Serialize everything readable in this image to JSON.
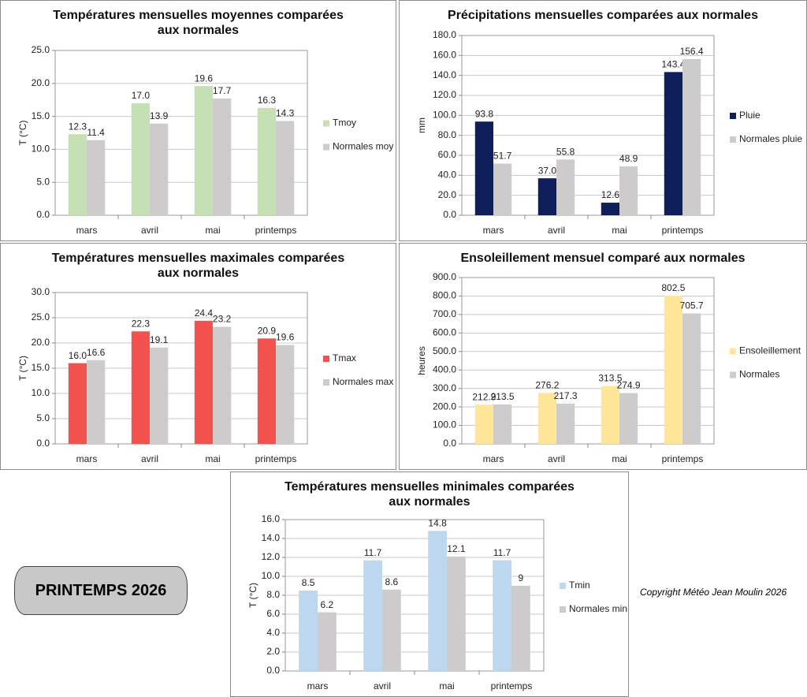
{
  "chart_data": [
    {
      "type": "bar",
      "title": "Températures mensuelles moyennes comparées\naux normales",
      "y_label": "T (°C)",
      "categories": [
        "mars",
        "avril",
        "mai",
        "printemps"
      ],
      "series": [
        {
          "name": "Tmoy",
          "color": "#c5e0b3",
          "values": [
            12.3,
            17.0,
            19.6,
            16.3
          ],
          "value_labels": [
            "12.3",
            "17.0",
            "19.6",
            "16.3"
          ]
        },
        {
          "name": "Normales moy",
          "color": "#cdcbcc",
          "values": [
            11.4,
            13.9,
            17.7,
            14.3
          ]
        }
      ],
      "ylim": [
        0,
        25
      ],
      "yticks": [
        {
          "value": 0,
          "label": "0.0"
        },
        {
          "value": 5,
          "label": "5.0"
        },
        {
          "value": 10,
          "label": "10.0"
        },
        {
          "value": 15,
          "label": "15.0"
        },
        {
          "value": 20,
          "label": "20.0"
        },
        {
          "value": 25,
          "label": "25.0"
        }
      ],
      "grid": true
    },
    {
      "type": "bar",
      "title": "Précipitations mensuelles comparées aux normales",
      "y_label": "mm",
      "categories": [
        "mars",
        "avril",
        "mai",
        "printemps"
      ],
      "series": [
        {
          "name": "Pluie",
          "color": "#0f1f5c",
          "values": [
            93.8,
            37.0,
            12.6,
            143.4
          ],
          "value_labels": [
            "93.8",
            "37.0",
            "12.6",
            "143.4"
          ]
        },
        {
          "name": "Normales pluie",
          "color": "#cdcbcc",
          "values": [
            51.7,
            55.8,
            48.9,
            156.4
          ]
        }
      ],
      "ylim": [
        0,
        180
      ],
      "yticks": [
        {
          "value": 0,
          "label": "0.0"
        },
        {
          "value": 20,
          "label": "20.0"
        },
        {
          "value": 40,
          "label": "40.0"
        },
        {
          "value": 60,
          "label": "60.0"
        },
        {
          "value": 80,
          "label": "80.0"
        },
        {
          "value": 100,
          "label": "100.0"
        },
        {
          "value": 120,
          "label": "120.0"
        },
        {
          "value": 140,
          "label": "140.0"
        },
        {
          "value": 160,
          "label": "160.0"
        },
        {
          "value": 180,
          "label": "180.0"
        }
      ],
      "grid": true
    },
    {
      "type": "bar",
      "title": "Températures mensuelles maximales comparées\naux normales",
      "y_label": "T (°C)",
      "categories": [
        "mars",
        "avril",
        "mai",
        "printemps"
      ],
      "series": [
        {
          "name": "Tmax",
          "color": "#f4524f",
          "values": [
            16.0,
            22.3,
            24.4,
            20.9
          ],
          "value_labels": [
            "16.0",
            "22.3",
            "24.4",
            "20.9"
          ]
        },
        {
          "name": "Normales max",
          "color": "#cdcbcc",
          "values": [
            16.6,
            19.1,
            23.2,
            19.6
          ]
        }
      ],
      "ylim": [
        0,
        30
      ],
      "yticks": [
        {
          "value": 0,
          "label": "0.0"
        },
        {
          "value": 5,
          "label": "5.0"
        },
        {
          "value": 10,
          "label": "10.0"
        },
        {
          "value": 15,
          "label": "15.0"
        },
        {
          "value": 20,
          "label": "20.0"
        },
        {
          "value": 25,
          "label": "25.0"
        },
        {
          "value": 30,
          "label": "30.0"
        }
      ],
      "grid": true
    },
    {
      "type": "bar",
      "title": "Ensoleillement mensuel comparé aux normales",
      "y_label": "heures",
      "categories": [
        "mars",
        "avril",
        "mai",
        "printemps"
      ],
      "series": [
        {
          "name": "Ensoleillement",
          "color": "#ffe699",
          "values": [
            212.9,
            276.2,
            313.5,
            802.5
          ]
        },
        {
          "name": "Normales",
          "color": "#cdcbcc",
          "values": [
            213.5,
            217.3,
            274.9,
            705.7
          ]
        }
      ],
      "ylim": [
        0,
        900
      ],
      "yticks": [
        {
          "value": 0,
          "label": "0.0"
        },
        {
          "value": 100,
          "label": "100.0"
        },
        {
          "value": 200,
          "label": "200.0"
        },
        {
          "value": 300,
          "label": "300.0"
        },
        {
          "value": 400,
          "label": "400.0"
        },
        {
          "value": 500,
          "label": "500.0"
        },
        {
          "value": 600,
          "label": "600.0"
        },
        {
          "value": 700,
          "label": "700.0"
        },
        {
          "value": 800,
          "label": "800.0"
        },
        {
          "value": 900,
          "label": "900.0"
        }
      ],
      "grid": true
    },
    {
      "type": "bar",
      "title": "Températures mensuelles minimales comparées\naux normales",
      "y_label": "T (°C)",
      "categories": [
        "mars",
        "avril",
        "mai",
        "printemps"
      ],
      "series": [
        {
          "name": "Tmin",
          "color": "#bdd7ee",
          "values": [
            8.5,
            11.7,
            14.8,
            11.7
          ]
        },
        {
          "name": "Normales min",
          "color": "#cdcbcc",
          "values": [
            6.2,
            8.6,
            12.1,
            9
          ]
        }
      ],
      "ylim": [
        0,
        16
      ],
      "yticks": [
        {
          "value": 0,
          "label": "0.0"
        },
        {
          "value": 2,
          "label": "2.0"
        },
        {
          "value": 4,
          "label": "4.0"
        },
        {
          "value": 6,
          "label": "6.0"
        },
        {
          "value": 8,
          "label": "8.0"
        },
        {
          "value": 10,
          "label": "10.0"
        },
        {
          "value": 12,
          "label": "12.0"
        },
        {
          "value": 14,
          "label": "14.0"
        },
        {
          "value": 16,
          "label": "16.0"
        }
      ],
      "grid": true
    }
  ],
  "badge": "PRINTEMPS 2026",
  "copyright": "Copyright Météo Jean Moulin 2026"
}
